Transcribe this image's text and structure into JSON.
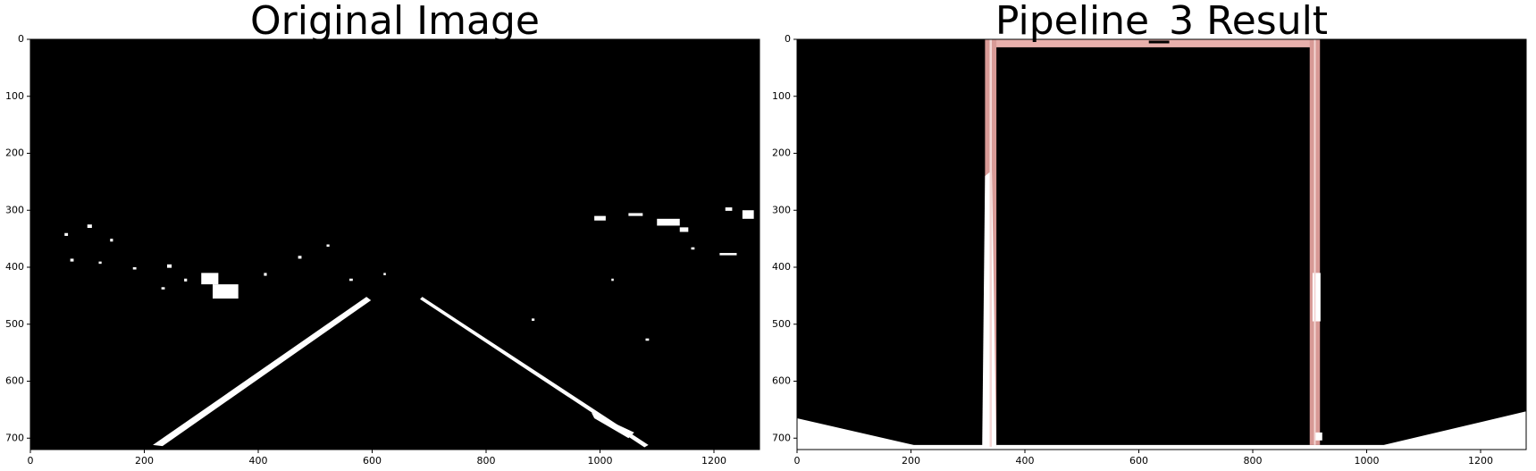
{
  "chart_data": [
    {
      "type": "image",
      "title": "Original Image",
      "xlim": [
        0,
        1280
      ],
      "ylim": [
        720,
        0
      ],
      "xticks": [
        0,
        200,
        400,
        600,
        800,
        1000,
        1200
      ],
      "yticks": [
        0,
        100,
        200,
        300,
        400,
        500,
        600,
        700
      ]
    },
    {
      "type": "image",
      "title": "Pipeline_3 Result",
      "xlim": [
        0,
        1280
      ],
      "ylim": [
        720,
        0
      ],
      "xticks": [
        0,
        200,
        400,
        600,
        800,
        1000,
        1200
      ],
      "yticks": [
        0,
        100,
        200,
        300,
        400,
        500,
        600,
        700
      ]
    }
  ]
}
